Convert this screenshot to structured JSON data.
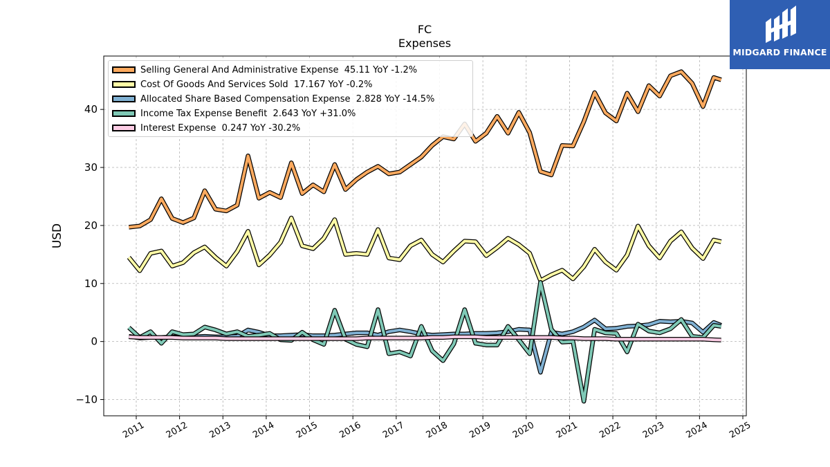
{
  "chart_data": {
    "type": "line",
    "title": "FC",
    "subtitle": "Expenses",
    "ylabel": "USD",
    "xlabel": "",
    "ylim": [
      -12.8,
      49.2
    ],
    "xlim": [
      2010.25,
      2025.08
    ],
    "yticks": [
      -10,
      0,
      10,
      20,
      30,
      40
    ],
    "ytick_labels": [
      "−10",
      "0",
      "10",
      "20",
      "30",
      "40"
    ],
    "xticks": [
      "2011",
      "2012",
      "2013",
      "2014",
      "2015",
      "2016",
      "2017",
      "2018",
      "2019",
      "2020",
      "2021",
      "2022",
      "2023",
      "2024",
      "2025"
    ],
    "grid": true,
    "legend_position": "top-left",
    "x": [
      2010.83,
      2011.08,
      2011.33,
      2011.58,
      2011.83,
      2012.08,
      2012.33,
      2012.58,
      2012.83,
      2013.08,
      2013.33,
      2013.58,
      2013.83,
      2014.08,
      2014.33,
      2014.58,
      2014.83,
      2015.08,
      2015.33,
      2015.58,
      2015.83,
      2016.08,
      2016.33,
      2016.58,
      2016.83,
      2017.08,
      2017.33,
      2017.58,
      2017.83,
      2018.08,
      2018.33,
      2018.58,
      2018.83,
      2019.08,
      2019.33,
      2019.58,
      2019.83,
      2020.08,
      2020.33,
      2020.58,
      2020.83,
      2021.08,
      2021.33,
      2021.58,
      2021.83,
      2022.08,
      2022.33,
      2022.58,
      2022.83,
      2023.08,
      2023.33,
      2023.58,
      2023.83,
      2024.08,
      2024.33,
      2024.5
    ],
    "series": [
      {
        "name": "Selling General And Administrative Expense",
        "legend": "Selling General And Administrative Expense  45.11 YoY -1.2%",
        "color": "#fdaa5f",
        "values": [
          19.7,
          19.9,
          21.0,
          24.6,
          21.2,
          20.5,
          21.3,
          26.0,
          22.8,
          22.5,
          23.5,
          32.0,
          24.7,
          25.7,
          24.8,
          30.8,
          25.5,
          27.0,
          25.8,
          30.5,
          26.2,
          27.9,
          29.2,
          30.2,
          28.9,
          29.2,
          30.5,
          31.8,
          33.8,
          35.3,
          34.9,
          37.5,
          34.5,
          35.9,
          38.8,
          35.9,
          39.5,
          36.0,
          29.3,
          28.7,
          33.8,
          33.7,
          37.9,
          42.9,
          39.4,
          38.0,
          42.8,
          39.6,
          44.1,
          42.3,
          45.8,
          46.5,
          44.5,
          40.5,
          45.5,
          45.1
        ]
      },
      {
        "name": "Cost Of Goods And Services Sold",
        "legend": "Cost Of Goods And Services Sold  17.167 YoY -0.2%",
        "color": "#fffba6",
        "values": [
          14.5,
          12.2,
          15.2,
          15.6,
          13.0,
          13.6,
          15.3,
          16.3,
          14.5,
          13.0,
          15.5,
          19.0,
          13.2,
          14.9,
          17.1,
          21.3,
          16.5,
          16.0,
          17.8,
          21.0,
          15.0,
          15.2,
          15.0,
          19.3,
          14.4,
          14.1,
          16.5,
          17.5,
          15.0,
          13.7,
          15.6,
          17.3,
          17.2,
          14.8,
          16.2,
          17.8,
          16.7,
          15.2,
          10.5,
          11.5,
          12.3,
          10.8,
          12.9,
          15.9,
          13.7,
          12.3,
          14.9,
          19.9,
          16.5,
          14.4,
          17.3,
          18.9,
          16.1,
          14.3,
          17.5,
          17.2
        ]
      },
      {
        "name": "Allocated Share Based Compensation Expense",
        "legend": "Allocated Share Based Compensation Expense  2.828 YoY -14.5%",
        "color": "#80b1d3",
        "values": [
          0.9,
          0.6,
          0.7,
          0.7,
          0.8,
          0.8,
          0.8,
          0.9,
          0.8,
          0.8,
          0.9,
          2.0,
          1.6,
          1.0,
          1.0,
          1.1,
          1.2,
          1.0,
          1.0,
          1.1,
          1.3,
          1.5,
          1.5,
          1.1,
          1.7,
          2.0,
          1.7,
          1.3,
          1.1,
          1.2,
          1.3,
          1.3,
          1.4,
          1.4,
          1.5,
          1.7,
          2.1,
          2.0,
          -5.3,
          1.6,
          1.3,
          1.7,
          2.5,
          3.7,
          2.2,
          2.3,
          2.6,
          2.7,
          2.9,
          3.5,
          3.4,
          3.5,
          3.2,
          1.6,
          3.3,
          2.8
        ]
      },
      {
        "name": "Income Tax Expense Benefit",
        "legend": "Income Tax Expense Benefit  2.643 YoY +31.0%",
        "color": "#7fc9b6",
        "values": [
          2.4,
          0.7,
          1.7,
          -0.3,
          1.7,
          1.2,
          1.3,
          2.5,
          2.0,
          1.3,
          1.7,
          0.9,
          1.1,
          1.4,
          0.3,
          0.2,
          1.6,
          0.3,
          -0.5,
          5.4,
          0.4,
          -0.5,
          -0.9,
          5.5,
          -2.1,
          -1.8,
          -2.5,
          2.6,
          -1.6,
          -3.3,
          -0.4,
          5.5,
          -0.3,
          -0.6,
          -0.6,
          2.6,
          0.3,
          -2.1,
          10.2,
          2.1,
          -0.1,
          0.0,
          -10.3,
          2.1,
          1.5,
          1.4,
          -1.8,
          3.0,
          1.8,
          1.5,
          2.2,
          3.8,
          0.9,
          0.7,
          2.8,
          2.6
        ]
      },
      {
        "name": "Interest Expense",
        "legend": "Interest Expense  0.247 YoY -30.2%",
        "color": "#fccde5",
        "values": [
          0.8,
          0.7,
          0.7,
          0.7,
          0.7,
          0.6,
          0.6,
          0.6,
          0.6,
          0.5,
          0.5,
          0.5,
          0.5,
          0.5,
          0.5,
          0.5,
          0.5,
          0.5,
          0.5,
          0.5,
          0.5,
          0.5,
          0.6,
          0.6,
          0.6,
          0.6,
          0.6,
          0.6,
          0.7,
          0.7,
          0.8,
          0.8,
          0.8,
          0.7,
          0.7,
          0.7,
          0.7,
          0.7,
          0.7,
          0.7,
          0.6,
          0.6,
          0.5,
          0.5,
          0.5,
          0.4,
          0.4,
          0.4,
          0.4,
          0.4,
          0.4,
          0.4,
          0.4,
          0.4,
          0.3,
          0.25
        ]
      }
    ]
  },
  "branding": {
    "name": "MIDGARD FINANCE",
    "color": "#2f5fb3"
  }
}
